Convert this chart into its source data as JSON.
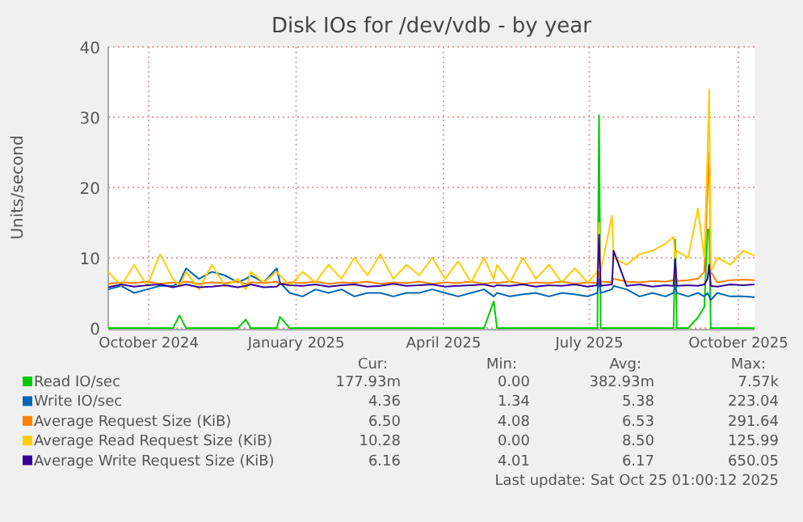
{
  "chart_data": {
    "type": "line",
    "title": "Disk IOs for /dev/vdb - by year",
    "ylabel": "Units/second",
    "x": [
      "2024-09-21",
      "2024-09-29",
      "2024-10-07",
      "2024-10-15",
      "2024-10-23",
      "2024-10-31",
      "2024-11-04",
      "2024-11-08",
      "2024-11-16",
      "2024-11-24",
      "2024-12-02",
      "2024-12-10",
      "2024-12-15",
      "2024-12-18",
      "2024-12-26",
      "2025-01-03",
      "2025-01-05",
      "2025-01-11",
      "2025-01-19",
      "2025-01-27",
      "2025-02-04",
      "2025-02-12",
      "2025-02-20",
      "2025-02-28",
      "2025-03-08",
      "2025-03-16",
      "2025-03-24",
      "2025-04-01",
      "2025-04-09",
      "2025-04-17",
      "2025-04-25",
      "2025-05-03",
      "2025-05-11",
      "2025-05-17",
      "2025-05-19",
      "2025-05-27",
      "2025-06-04",
      "2025-06-12",
      "2025-06-20",
      "2025-06-28",
      "2025-07-06",
      "2025-07-14",
      "2025-07-20",
      "2025-07-21",
      "2025-07-22",
      "2025-07-29",
      "2025-07-30",
      "2025-08-07",
      "2025-08-15",
      "2025-08-23",
      "2025-08-31",
      "2025-09-05",
      "2025-09-06",
      "2025-09-07",
      "2025-09-14",
      "2025-09-20",
      "2025-09-24",
      "2025-09-26",
      "2025-09-27",
      "2025-09-28",
      "2025-10-02",
      "2025-10-10",
      "2025-10-18",
      "2025-10-25"
    ],
    "series": [
      {
        "name": "Read IO/sec",
        "color": "#00cc00",
        "values": [
          0,
          0,
          0,
          0,
          0,
          0,
          1.8,
          0,
          0,
          0,
          0,
          0,
          1.2,
          0,
          0,
          0,
          1.6,
          0,
          0,
          0,
          0,
          0,
          0,
          0,
          0,
          0,
          0,
          0,
          0,
          0,
          0,
          0,
          0,
          3.8,
          0,
          0,
          0,
          0,
          0,
          0,
          0,
          0,
          0,
          30.3,
          0,
          0,
          0,
          0,
          0,
          0,
          0,
          0,
          12.6,
          0,
          0,
          1.5,
          3,
          14,
          14,
          0,
          0,
          0,
          0,
          0
        ]
      },
      {
        "name": "Write IO/sec",
        "color": "#0066b3",
        "values": [
          5.5,
          6,
          5,
          5.5,
          6,
          6,
          6.5,
          8.5,
          7,
          8,
          7.5,
          6.5,
          7,
          7.5,
          6.5,
          8.5,
          6.5,
          5,
          4.5,
          5.5,
          5,
          5.5,
          4.5,
          5,
          5,
          4.5,
          5,
          5,
          5.5,
          5,
          4.5,
          5,
          5.5,
          4.5,
          5,
          4.5,
          4.8,
          5,
          4.5,
          5,
          4.8,
          4.5,
          5,
          7,
          5,
          5.5,
          6,
          5.5,
          4.5,
          5,
          4.5,
          5,
          6,
          5,
          4.5,
          5,
          4.5,
          5,
          4.5,
          4,
          5,
          4.5,
          4.5,
          4.4
        ]
      },
      {
        "name": "Average Request Size (KiB)",
        "color": "#ff8000",
        "values": [
          6.3,
          6.5,
          6.4,
          6.6,
          6.3,
          6.5,
          6.4,
          6.6,
          6.3,
          6.5,
          6.4,
          6.6,
          6.3,
          6.5,
          6.4,
          6.6,
          6.3,
          6.5,
          6.4,
          6.6,
          6.3,
          6.5,
          6.4,
          6.6,
          6.3,
          6.5,
          6.4,
          6.6,
          6.3,
          6.5,
          6.4,
          6.6,
          6.3,
          6.5,
          6.4,
          6.6,
          6.3,
          6.5,
          6.4,
          6.6,
          6.3,
          6.5,
          6.4,
          8,
          6.6,
          6.5,
          7,
          6.6,
          6.5,
          6.7,
          6.6,
          6.8,
          8,
          6.7,
          6.8,
          7,
          8,
          20,
          25,
          8,
          6.5,
          6.8,
          6.9,
          6.8
        ]
      },
      {
        "name": "Average Read Request Size (KiB)",
        "color": "#ffcc00",
        "values": [
          8,
          6,
          9,
          6,
          10.5,
          7,
          6,
          8,
          5.5,
          9,
          6,
          7,
          5.5,
          8,
          6.5,
          8,
          7.5,
          6,
          8,
          6.5,
          9,
          7,
          10,
          7.5,
          10.5,
          7,
          9,
          7.5,
          10,
          7,
          9.5,
          6.5,
          10,
          7,
          9,
          6.5,
          10,
          7,
          9,
          6.5,
          8.5,
          6.5,
          8,
          15,
          8,
          16,
          10,
          9,
          10.5,
          11,
          12,
          13,
          10,
          11,
          10,
          17,
          10,
          25,
          34,
          8,
          10,
          9,
          11,
          10.3
        ]
      },
      {
        "name": "Average Write Request Size (KiB)",
        "color": "#330099",
        "values": [
          5.8,
          6.2,
          5.9,
          6.1,
          6.2,
          5.8,
          6,
          6.2,
          5.8,
          5.9,
          6.1,
          5.8,
          6,
          6.2,
          5.8,
          5.9,
          6.3,
          6.1,
          6,
          6.2,
          5.9,
          6.1,
          6.2,
          5.9,
          6,
          6.3,
          6,
          6.1,
          6.2,
          5.9,
          6,
          6.1,
          6.2,
          5.9,
          6.1,
          6,
          6.2,
          5.9,
          6.1,
          6,
          6.2,
          5.9,
          6.1,
          13.3,
          6,
          6.2,
          11,
          6,
          6.2,
          5.9,
          6.1,
          6,
          9.8,
          6,
          6.1,
          6,
          6.2,
          7,
          9,
          6,
          5.9,
          6.2,
          6.1,
          6.2
        ]
      }
    ],
    "xlim": [
      "2024-09-21",
      "2025-10-25"
    ],
    "xticks": [
      {
        "value": "2024-10-16",
        "label": "October 2024"
      },
      {
        "value": "2025-01-15",
        "label": "January 2025"
      },
      {
        "value": "2025-04-16",
        "label": "April 2025"
      },
      {
        "value": "2025-07-15",
        "label": "July 2025"
      },
      {
        "value": "2025-10-15",
        "label": "October 2025"
      }
    ],
    "ylim": [
      0,
      40
    ],
    "yticks": [
      0,
      10,
      20,
      30,
      40
    ],
    "grid": true,
    "legend": "bottom",
    "annotations": [
      "Cur:",
      "Min:",
      "Avg:",
      "Max:",
      "177.93m",
      "0.00",
      "382.93m",
      "7.57k",
      "4.36",
      "1.34",
      "5.38",
      "223.04",
      "6.50",
      "4.08",
      "6.53",
      "291.64",
      "10.28",
      "0.00",
      "8.50",
      "125.99",
      "6.16",
      "4.01",
      "6.17",
      "650.05",
      "Last update: Sat Oct 25 01:00:12 2025"
    ]
  }
}
